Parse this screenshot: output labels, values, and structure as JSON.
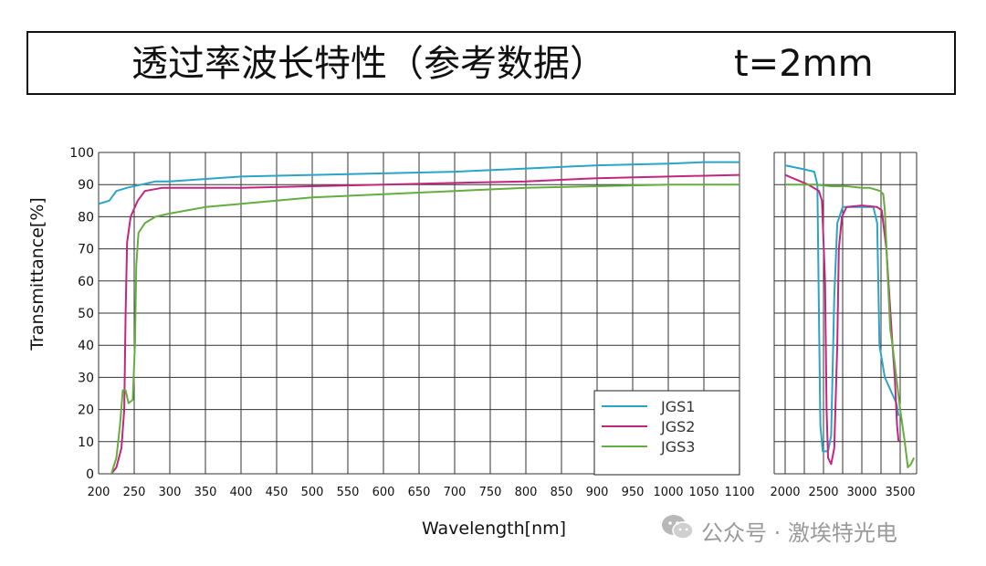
{
  "header": {
    "title": "透过率波长特性（参考数据）",
    "thickness": "t=2mm"
  },
  "watermark": {
    "icon": "wechat-icon",
    "text": "公众号 · 激埃特光电"
  },
  "chart_data": {
    "type": "line",
    "title": "透过率波长特性（参考数据）",
    "subtitle": "t=2mm",
    "xlabel": "Wavelength[nm]",
    "ylabel": "Transmittance[%]",
    "ylim": [
      0,
      100
    ],
    "yticks": [
      "0",
      "10",
      "20",
      "30",
      "40",
      "50",
      "60",
      "70",
      "80",
      "90",
      "100"
    ],
    "grid": true,
    "legend_position": "bottom-right",
    "panels": [
      {
        "xlim": [
          200,
          1100
        ],
        "xticks": [
          "200",
          "250",
          "300",
          "350",
          "400",
          "450",
          "500",
          "550",
          "600",
          "650",
          "700",
          "750",
          "800",
          "850",
          "900",
          "950",
          "1000",
          "1050",
          "1100"
        ]
      },
      {
        "xlim": [
          2000,
          3700
        ],
        "xticks": [
          "2000",
          "2500",
          "3000",
          "3500"
        ]
      }
    ],
    "series": [
      {
        "name": "JGS1",
        "color": "#2aa4c9",
        "points": [
          [
            200,
            84
          ],
          [
            215,
            85
          ],
          [
            225,
            88
          ],
          [
            240,
            89
          ],
          [
            260,
            90
          ],
          [
            280,
            91
          ],
          [
            300,
            91
          ],
          [
            400,
            92.5
          ],
          [
            500,
            93
          ],
          [
            600,
            93.5
          ],
          [
            700,
            94
          ],
          [
            800,
            95
          ],
          [
            900,
            96
          ],
          [
            1000,
            96.5
          ],
          [
            1050,
            97
          ],
          [
            1100,
            97
          ]
        ],
        "points_ir": [
          [
            2000,
            96
          ],
          [
            2200,
            95
          ],
          [
            2380,
            94
          ],
          [
            2420,
            90
          ],
          [
            2440,
            50
          ],
          [
            2460,
            15
          ],
          [
            2490,
            7
          ],
          [
            2560,
            7
          ],
          [
            2600,
            12
          ],
          [
            2640,
            55
          ],
          [
            2680,
            78
          ],
          [
            2750,
            83
          ],
          [
            3000,
            83
          ],
          [
            3150,
            83
          ],
          [
            3200,
            78
          ],
          [
            3230,
            40
          ],
          [
            3300,
            30
          ],
          [
            3450,
            22
          ],
          [
            3480,
            18
          ]
        ]
      },
      {
        "name": "JGS2",
        "color": "#c2267e",
        "points": [
          [
            218,
            0
          ],
          [
            225,
            2
          ],
          [
            232,
            8
          ],
          [
            236,
            20
          ],
          [
            238,
            50
          ],
          [
            240,
            72
          ],
          [
            245,
            80
          ],
          [
            255,
            85
          ],
          [
            265,
            88
          ],
          [
            290,
            89
          ],
          [
            400,
            89
          ],
          [
            500,
            89.5
          ],
          [
            600,
            90
          ],
          [
            700,
            90.5
          ],
          [
            800,
            91
          ],
          [
            900,
            92
          ],
          [
            1000,
            92.5
          ],
          [
            1100,
            93
          ]
        ],
        "points_ir": [
          [
            2000,
            93
          ],
          [
            2100,
            92
          ],
          [
            2200,
            91
          ],
          [
            2300,
            90
          ],
          [
            2440,
            88
          ],
          [
            2480,
            85
          ],
          [
            2520,
            60
          ],
          [
            2540,
            20
          ],
          [
            2560,
            5
          ],
          [
            2600,
            3
          ],
          [
            2640,
            8
          ],
          [
            2680,
            40
          ],
          [
            2700,
            70
          ],
          [
            2740,
            80
          ],
          [
            2800,
            83
          ],
          [
            3000,
            83.5
          ],
          [
            3200,
            83
          ],
          [
            3260,
            82
          ],
          [
            3320,
            70
          ],
          [
            3400,
            40
          ],
          [
            3430,
            30
          ],
          [
            3460,
            15
          ],
          [
            3480,
            10
          ]
        ]
      },
      {
        "name": "JGS3",
        "color": "#64ad3f",
        "points": [
          [
            218,
            0
          ],
          [
            225,
            5
          ],
          [
            230,
            15
          ],
          [
            234,
            26
          ],
          [
            238,
            26
          ],
          [
            242,
            22
          ],
          [
            248,
            23
          ],
          [
            251,
            40
          ],
          [
            253,
            65
          ],
          [
            256,
            75
          ],
          [
            265,
            78
          ],
          [
            280,
            80
          ],
          [
            300,
            81
          ],
          [
            350,
            83
          ],
          [
            400,
            84
          ],
          [
            500,
            86
          ],
          [
            600,
            87
          ],
          [
            700,
            88
          ],
          [
            800,
            89
          ],
          [
            900,
            89.5
          ],
          [
            1000,
            90
          ],
          [
            1100,
            90
          ]
        ],
        "points_ir": [
          [
            2000,
            90
          ],
          [
            2200,
            90
          ],
          [
            2400,
            90
          ],
          [
            2600,
            89.5
          ],
          [
            2800,
            89.5
          ],
          [
            3000,
            89
          ],
          [
            3100,
            89
          ],
          [
            3240,
            88
          ],
          [
            3280,
            87
          ],
          [
            3300,
            82
          ],
          [
            3340,
            60
          ],
          [
            3370,
            45
          ],
          [
            3400,
            40
          ],
          [
            3450,
            30
          ],
          [
            3500,
            20
          ],
          [
            3560,
            10
          ],
          [
            3600,
            2
          ],
          [
            3640,
            3
          ],
          [
            3680,
            5
          ]
        ]
      }
    ]
  }
}
